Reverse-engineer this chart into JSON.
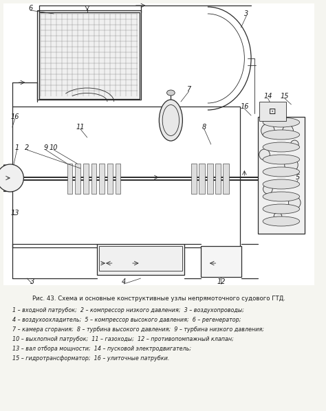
{
  "title": "Рис. 43. Схема и основные конструктивные узлы непрямоточного судового ГТД.",
  "caption_lines": [
    "1 – входной патрубок;  2 – компрессор низкого давления;  3 – воздухопроводы;",
    "4 – воздухоохладитель;  5 – компрессор высокого давления;  6 – регенератор;",
    "7 – камера сгорания;  8 – турбина высокого давления;  9 – турбина низкого давления;",
    "10 – выхлопной патрубок;  11 – газоходы;  12 – противопомпажный клапан;",
    "13 – вал отбора мощности;  14 – пусковой электродвигатель;",
    "15 – гидротрансформатор;  16 – улиточные патрубки."
  ],
  "bg_color": "#f5f5f0",
  "text_color": "#1a1a1a",
  "line_color": "#2a2a2a",
  "diagram_bg": "#ffffff"
}
